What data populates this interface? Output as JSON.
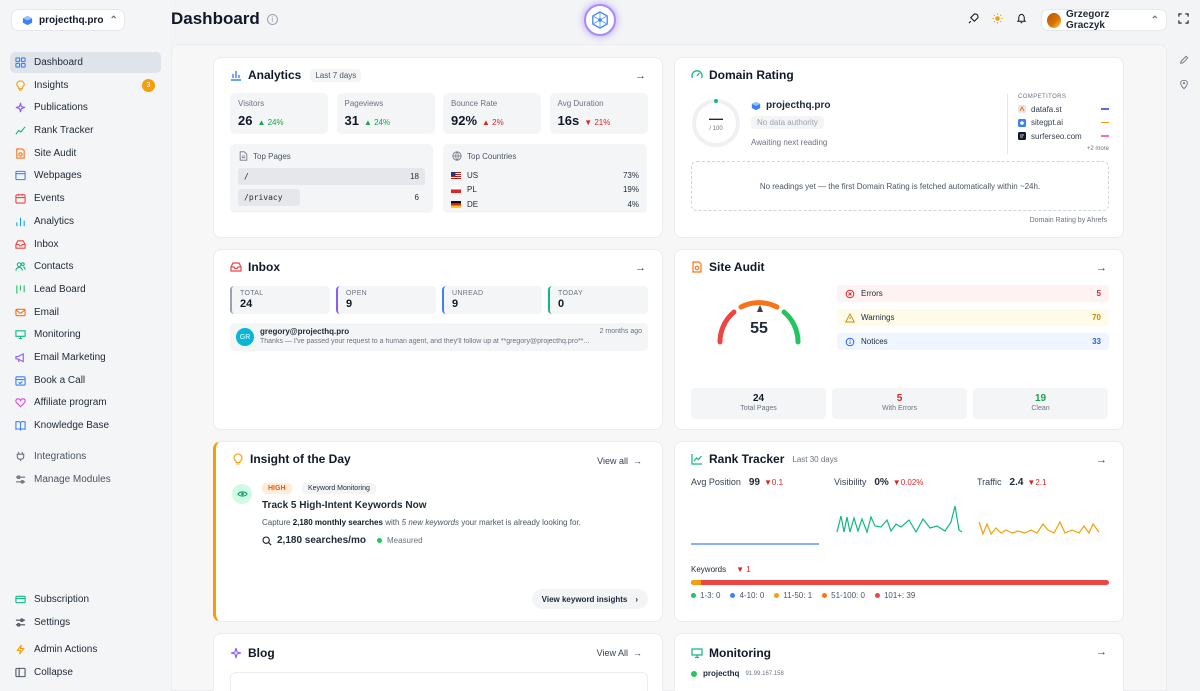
{
  "workspace": {
    "name": "projecthq.pro"
  },
  "sidebar": {
    "items": [
      {
        "label": "Dashboard",
        "icon": "grid-icon",
        "color": "#3b82f6"
      },
      {
        "label": "Insights",
        "icon": "lightbulb-icon",
        "color": "#f59e0b",
        "badge": "3"
      },
      {
        "label": "Publications",
        "icon": "sparkle-icon",
        "color": "#8b5cf6"
      },
      {
        "label": "Rank Tracker",
        "icon": "trend-icon",
        "color": "#10b981"
      },
      {
        "label": "Site Audit",
        "icon": "audit-icon",
        "color": "#f97316"
      },
      {
        "label": "Webpages",
        "icon": "window-icon",
        "color": "#3b82f6"
      },
      {
        "label": "Events",
        "icon": "calendar-icon",
        "color": "#ef4444"
      },
      {
        "label": "Analytics",
        "icon": "bar-chart-icon",
        "color": "#0ea5e9"
      },
      {
        "label": "Inbox",
        "icon": "inbox-icon",
        "color": "#ef4444"
      },
      {
        "label": "Contacts",
        "icon": "users-icon",
        "color": "#10b981"
      },
      {
        "label": "Lead Board",
        "icon": "kanban-icon",
        "color": "#22c55e"
      },
      {
        "label": "Email",
        "icon": "mail-icon",
        "color": "#f97316"
      },
      {
        "label": "Monitoring",
        "icon": "monitor-icon",
        "color": "#10b981"
      },
      {
        "label": "Email Marketing",
        "icon": "megaphone-icon",
        "color": "#8b5cf6"
      },
      {
        "label": "Book a Call",
        "icon": "calendar-check-icon",
        "color": "#3b82f6"
      },
      {
        "label": "Affiliate program",
        "icon": "heart-icon",
        "color": "#d946ef"
      },
      {
        "label": "Knowledge Base",
        "icon": "book-icon",
        "color": "#3b82f6"
      }
    ],
    "secondary": [
      {
        "label": "Integrations",
        "icon": "plug-icon"
      },
      {
        "label": "Manage Modules",
        "icon": "sliders-icon"
      }
    ],
    "bottom": [
      {
        "label": "Subscription",
        "icon": "card-icon",
        "color": "#10b981"
      },
      {
        "label": "Settings",
        "icon": "settings-icon",
        "color": "#4b5563"
      },
      {
        "label": "Admin Actions",
        "icon": "bolt-icon",
        "color": "#f59e0b"
      },
      {
        "label": "Collapse",
        "icon": "collapse-icon",
        "color": "#4b5563"
      }
    ]
  },
  "header": {
    "title": "Dashboard",
    "info": "i",
    "user": "Grzegorz Graczyk"
  },
  "analytics": {
    "title": "Analytics",
    "period": "Last 7 days",
    "stats": [
      {
        "label": "Visitors",
        "value": "26",
        "delta": "▲ 24%",
        "dir": "up"
      },
      {
        "label": "Pageviews",
        "value": "31",
        "delta": "▲ 24%",
        "dir": "up"
      },
      {
        "label": "Bounce Rate",
        "value": "92%",
        "delta": "▲ 2%",
        "dir": "dn"
      },
      {
        "label": "Avg Duration",
        "value": "16s",
        "delta": "▼ 21%",
        "dir": "dn"
      }
    ],
    "top_pages": {
      "title": "Top Pages",
      "rows": [
        {
          "path": "/",
          "count": "18",
          "fraction": 1.0
        },
        {
          "path": "/privacy",
          "count": "6",
          "fraction": 0.33
        }
      ]
    },
    "top_countries": {
      "title": "Top Countries",
      "rows": [
        {
          "code": "US",
          "pct": "73%"
        },
        {
          "code": "PL",
          "pct": "19%"
        },
        {
          "code": "DE",
          "pct": "4%"
        }
      ]
    }
  },
  "domain_rating": {
    "title": "Domain Rating",
    "value": "—",
    "scale": "/ 100",
    "domain": "projecthq.pro",
    "authority_badge": "No data authority",
    "status": "Awaiting next reading",
    "competitors_title": "COMPETITORS",
    "competitors": [
      {
        "name": "datafa.st",
        "color": "#6366f1"
      },
      {
        "name": "sitegpt.ai",
        "color": "#f59e0b"
      },
      {
        "name": "surferseo.com",
        "color": "#f472b6"
      }
    ],
    "more": "+2 more",
    "empty": "No readings yet — the first Domain Rating is fetched automatically within ~24h.",
    "footer": "Domain Rating by Ahrefs"
  },
  "inbox": {
    "title": "Inbox",
    "stats": [
      {
        "label": "TOTAL",
        "value": "24",
        "color": "#9ca3af"
      },
      {
        "label": "OPEN",
        "value": "9",
        "color": "#8b5cf6"
      },
      {
        "label": "UNREAD",
        "value": "9",
        "color": "#3b82f6"
      },
      {
        "label": "TODAY",
        "value": "0",
        "color": "#10b981"
      }
    ],
    "message": {
      "initials": "GR",
      "from": "gregory@projecthq.pro",
      "time": "2 months ago",
      "preview": "Thanks — I've passed your request to a human agent, and they'll follow up at **gregory@projecthq.pro**..."
    }
  },
  "site_audit": {
    "title": "Site Audit",
    "score": "55",
    "rows": [
      {
        "label": "Errors",
        "count": "5",
        "bg": "#fef2f2",
        "color": "#dc2626"
      },
      {
        "label": "Warnings",
        "count": "70",
        "bg": "#fefce8",
        "color": "#ca8a04"
      },
      {
        "label": "Notices",
        "count": "33",
        "bg": "#eff6ff",
        "color": "#2563eb"
      }
    ],
    "tiles": [
      {
        "value": "24",
        "label": "Total Pages",
        "color": "#111827"
      },
      {
        "value": "5",
        "label": "With Errors",
        "color": "#dc2626"
      },
      {
        "value": "19",
        "label": "Clean",
        "color": "#16a34a"
      }
    ]
  },
  "insight": {
    "title": "Insight of the Day",
    "view_all": "View all",
    "priority": "HIGH",
    "category": "Keyword Monitoring",
    "headline": "Track 5 High-Intent Keywords Now",
    "desc_1": "Capture ",
    "desc_b": "2,180 monthly searches",
    "desc_2": " with ",
    "desc_i": "5 new keywords",
    "desc_3": " your market is already looking for.",
    "metric": "2,180 searches/mo",
    "status": "Measured",
    "cta": "View keyword insights"
  },
  "rank_tracker": {
    "title": "Rank Tracker",
    "period": "Last 30 days",
    "metrics": [
      {
        "label": "Avg Position",
        "value": "99",
        "delta": "▼0.1"
      },
      {
        "label": "Visibility",
        "value": "0%",
        "delta": "▼0.02%"
      },
      {
        "label": "Traffic",
        "value": "2.4",
        "delta": "▼2.1"
      }
    ],
    "keywords_label": "Keywords",
    "keywords_delta": "▼ 1",
    "buckets": [
      {
        "label": "1-3: 0",
        "color": "#22c55e"
      },
      {
        "label": "4-10: 0",
        "color": "#3b82f6"
      },
      {
        "label": "11-50: 1",
        "color": "#f59e0b"
      },
      {
        "label": "51-100: 0",
        "color": "#f97316"
      },
      {
        "label": "101+: 39",
        "color": "#ef4444"
      }
    ]
  },
  "blog": {
    "title": "Blog",
    "view_all": "View All"
  },
  "monitoring": {
    "title": "Monitoring",
    "site": "projecthq",
    "ip": "91.99.167.158"
  }
}
